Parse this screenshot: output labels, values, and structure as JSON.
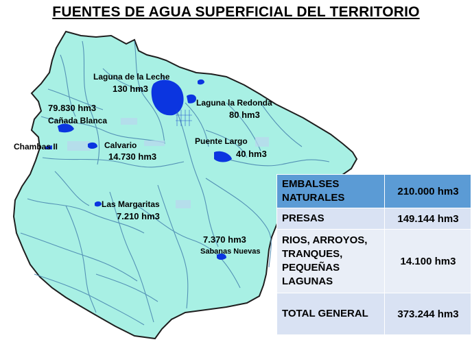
{
  "title": "FUENTES DE AGUA SUPERFICIAL DEL TERRITORIO",
  "colors": {
    "land": "#a8f0e4",
    "border": "#1e1e1e",
    "river": "#4a87b0",
    "water_body": "#0b35e0",
    "table_header": "#5b9bd5",
    "table_row": "#d9e2f3"
  },
  "map_labels": {
    "laguna_leche_name": "Laguna de la Leche",
    "laguna_leche_vol": "130 hm3",
    "laguna_redonda_name": "Laguna la Redonda",
    "laguna_redonda_vol": "80 hm3",
    "canada_vol": "79.830 hm3",
    "canada_name": "Cañada Blanca",
    "chambas_name": "Chambas II",
    "calvario_name": "Calvario",
    "calvario_vol": "14.730 hm3",
    "puente_name": "Puente Largo",
    "puente_vol": "40 hm3",
    "margaritas_name": "Las Margaritas",
    "margaritas_vol": "7.210 hm3",
    "sabanas_vol": "7.370 hm3",
    "sabanas_name": "Sabanas Nuevas"
  },
  "table": [
    {
      "label": "EMBALSES NATURALES",
      "value": "210.000 hm3"
    },
    {
      "label": "PRESAS",
      "value": "149.144 hm3"
    },
    {
      "label": "RIOS, ARROYOS, TRANQUES, PEQUEÑAS LAGUNAS",
      "value": "14.100 hm3"
    },
    {
      "label": "TOTAL GENERAL",
      "value": "373.244 hm3"
    }
  ]
}
